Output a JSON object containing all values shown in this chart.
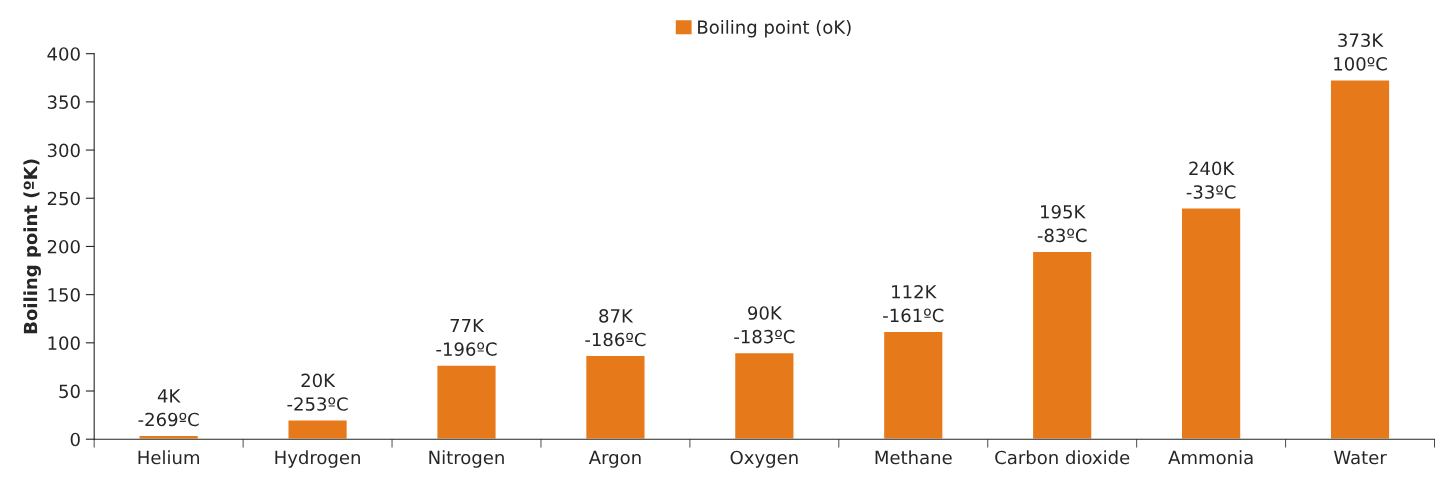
{
  "chart_data": {
    "type": "bar",
    "ylabel": "Boiling point (ºK)",
    "categories": [
      "Helium",
      "Hydrogen",
      "Nitrogen",
      "Argon",
      "Oxygen",
      "Methane",
      "Carbon dioxide",
      "Ammonia",
      "Water"
    ],
    "series": [
      {
        "name": "Boiling point (oK)",
        "color": "#e67a1b",
        "values": [
          4,
          20,
          77,
          87,
          90,
          112,
          195,
          240,
          373
        ],
        "value_labels": [
          "4K",
          "20K",
          "77K",
          "87K",
          "90K",
          "112K",
          "195K",
          "240K",
          "373K"
        ]
      }
    ],
    "annotations": [
      {
        "text": "-269ºC",
        "x": "Helium",
        "y": 4
      },
      {
        "text": "-253ºC",
        "x": "Hydrogen",
        "y": 20
      },
      {
        "text": "-196ºC",
        "x": "Nitrogen",
        "y": 77
      },
      {
        "text": "-186ºC",
        "x": "Argon",
        "y": 87
      },
      {
        "text": "-183ºC",
        "x": "Oxygen",
        "y": 90
      },
      {
        "text": "-161ºC",
        "x": "Methane",
        "y": 112
      },
      {
        "text": "-83ºC",
        "x": "Carbon dioxide",
        "y": 195
      },
      {
        "text": "-33ºC",
        "x": "Ammonia",
        "y": 240
      },
      {
        "text": "100ºC",
        "x": "Water",
        "y": 373
      }
    ],
    "ylim": [
      0,
      400
    ],
    "yticks": [
      0,
      50,
      100,
      150,
      200,
      250,
      300,
      350,
      400
    ],
    "grid": false,
    "legend": "top"
  }
}
